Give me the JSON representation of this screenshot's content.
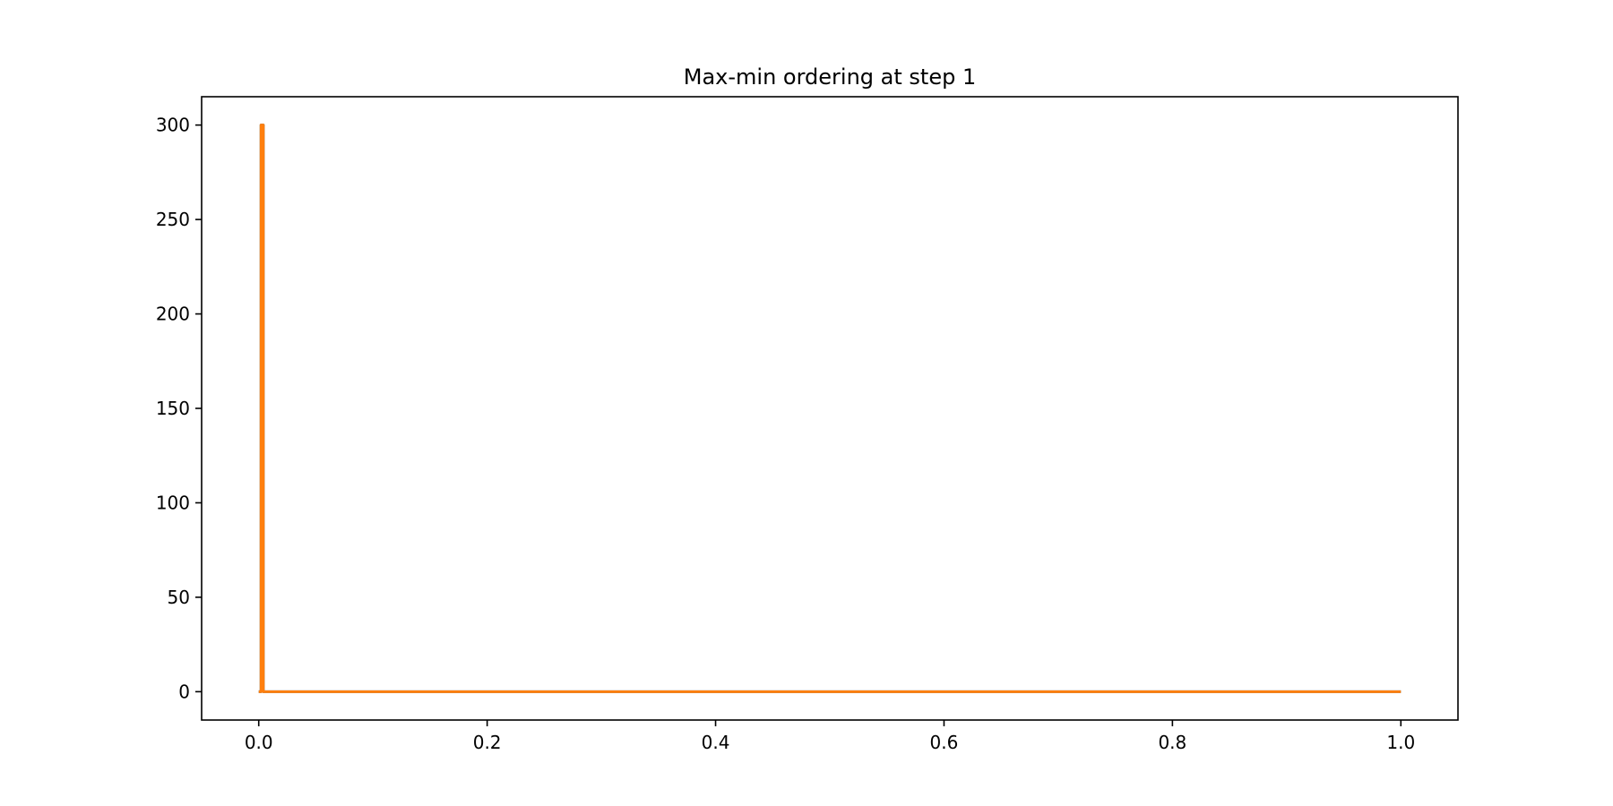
{
  "chart_data": {
    "type": "line",
    "title": "Max-min ordering at step 1",
    "xlabel": "",
    "ylabel": "",
    "xlim": [
      -0.05,
      1.05
    ],
    "ylim": [
      -15,
      315
    ],
    "x_ticks": [
      0.0,
      0.2,
      0.4,
      0.6,
      0.8,
      1.0
    ],
    "x_tick_labels": [
      "0.0",
      "0.2",
      "0.4",
      "0.6",
      "0.8",
      "1.0"
    ],
    "y_ticks": [
      0,
      50,
      100,
      150,
      200,
      250,
      300
    ],
    "y_tick_labels": [
      "0",
      "50",
      "100",
      "150",
      "200",
      "250",
      "300"
    ],
    "grid": false,
    "legend": "none",
    "series": [
      {
        "color": "#1f77b4",
        "x": [
          0.0,
          0.002,
          0.002,
          0.004,
          0.004,
          1.0
        ],
        "y": [
          0,
          0,
          300,
          300,
          0,
          0
        ]
      },
      {
        "color": "#ff7f0e",
        "x": [
          0.0,
          0.002,
          0.002,
          0.004,
          0.004,
          1.0
        ],
        "y": [
          0,
          0,
          300,
          300,
          0,
          0
        ]
      }
    ]
  }
}
